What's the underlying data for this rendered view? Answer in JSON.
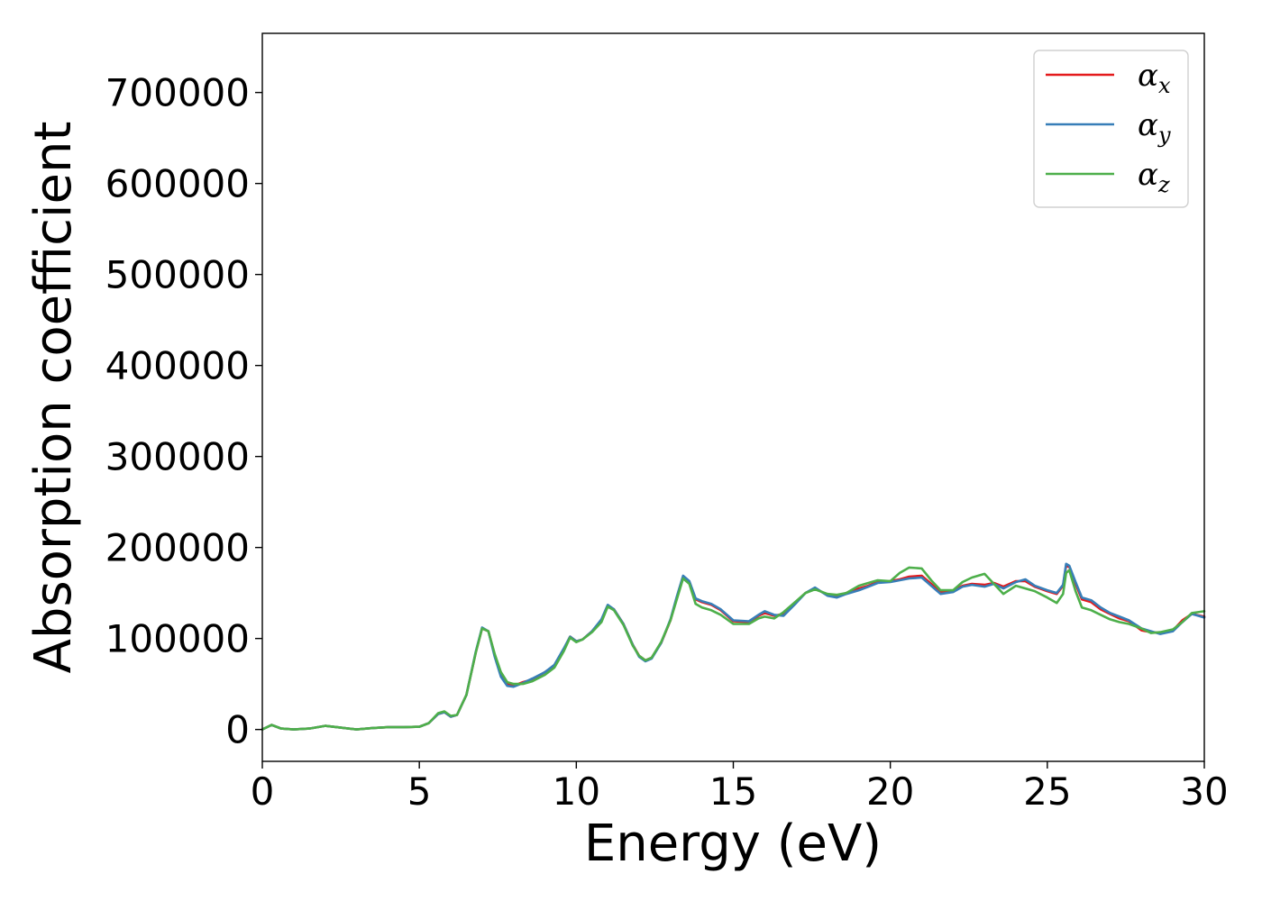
{
  "chart_data": {
    "type": "line",
    "title": "",
    "xlabel": "Energy (eV)",
    "ylabel": "Absorption coefficient",
    "xlim": [
      0,
      30
    ],
    "ylim": [
      -35000,
      765000
    ],
    "xticks": [
      0,
      5,
      10,
      15,
      20,
      25,
      30
    ],
    "xtick_labels": [
      "0",
      "5",
      "10",
      "15",
      "20",
      "25",
      "30"
    ],
    "yticks": [
      0,
      100000,
      200000,
      300000,
      400000,
      500000,
      600000,
      700000
    ],
    "ytick_labels": [
      "0",
      "100000",
      "200000",
      "300000",
      "400000",
      "500000",
      "600000",
      "700000"
    ],
    "grid": false,
    "legend_position": "top-right",
    "colors": {
      "alpha_x": "#e41a1c",
      "alpha_y": "#377eb8",
      "alpha_z": "#4daf4a"
    },
    "series": [
      {
        "name": "αx",
        "sym": "α",
        "sub": "x",
        "color": "#e41a1c",
        "x": [
          0,
          0.3,
          0.6,
          1,
          1.5,
          2,
          2.5,
          3,
          3.5,
          4,
          4.5,
          5,
          5.3,
          5.6,
          5.8,
          6,
          6.2,
          6.5,
          6.8,
          7,
          7.2,
          7.4,
          7.6,
          7.8,
          8,
          8.3,
          8.6,
          9,
          9.3,
          9.6,
          9.8,
          10,
          10.2,
          10.5,
          10.8,
          11,
          11.2,
          11.5,
          11.8,
          12,
          12.2,
          12.4,
          12.7,
          13,
          13.2,
          13.4,
          13.6,
          13.8,
          14,
          14.3,
          14.6,
          15,
          15.5,
          15.8,
          16,
          16.3,
          16.6,
          17,
          17.3,
          17.6,
          18,
          18.3,
          18.6,
          19,
          19.3,
          19.6,
          20,
          20.3,
          20.6,
          21,
          21.3,
          21.6,
          22,
          22.3,
          22.6,
          23,
          23.3,
          23.6,
          24,
          24.3,
          24.6,
          25,
          25.3,
          25.5,
          25.6,
          25.7,
          25.9,
          26.1,
          26.4,
          26.7,
          27,
          27.3,
          27.6,
          28,
          28.3,
          28.6,
          29,
          29.3,
          29.6,
          30
        ],
        "y": [
          0,
          5000,
          1000,
          0,
          1000,
          4000,
          2000,
          0,
          1500,
          2500,
          2500,
          3000,
          7000,
          17000,
          19000,
          14000,
          16000,
          38000,
          85000,
          111000,
          108000,
          82000,
          60000,
          50000,
          48000,
          52000,
          55000,
          63000,
          70000,
          88000,
          102000,
          97000,
          99000,
          108000,
          120000,
          136000,
          132000,
          116000,
          93000,
          81000,
          76000,
          79000,
          95000,
          120000,
          145000,
          168000,
          162000,
          143000,
          140000,
          137000,
          131000,
          119000,
          118000,
          125000,
          128000,
          125000,
          127000,
          140000,
          150000,
          155000,
          148000,
          146000,
          150000,
          155000,
          158000,
          162000,
          163000,
          165000,
          168000,
          169000,
          160000,
          151000,
          152000,
          158000,
          160000,
          159000,
          161000,
          157000,
          163000,
          163000,
          157000,
          152000,
          149000,
          158000,
          180000,
          179000,
          160000,
          143000,
          140000,
          132000,
          127000,
          122000,
          119000,
          109000,
          107000,
          106000,
          109000,
          120000,
          127000,
          124000
        ]
      },
      {
        "name": "αy",
        "sym": "α",
        "sub": "y",
        "color": "#377eb8",
        "x": [
          0,
          0.3,
          0.6,
          1,
          1.5,
          2,
          2.5,
          3,
          3.5,
          4,
          4.5,
          5,
          5.3,
          5.6,
          5.8,
          6,
          6.2,
          6.5,
          6.8,
          7,
          7.2,
          7.4,
          7.6,
          7.8,
          8,
          8.3,
          8.6,
          9,
          9.3,
          9.6,
          9.8,
          10,
          10.2,
          10.5,
          10.8,
          11,
          11.2,
          11.5,
          11.8,
          12,
          12.2,
          12.4,
          12.7,
          13,
          13.2,
          13.4,
          13.6,
          13.8,
          14,
          14.3,
          14.6,
          15,
          15.5,
          15.8,
          16,
          16.3,
          16.6,
          17,
          17.3,
          17.6,
          18,
          18.3,
          18.6,
          19,
          19.3,
          19.6,
          20,
          20.3,
          20.6,
          21,
          21.3,
          21.6,
          22,
          22.3,
          22.6,
          23,
          23.3,
          23.6,
          24,
          24.3,
          24.6,
          25,
          25.3,
          25.5,
          25.6,
          25.7,
          25.9,
          26.1,
          26.4,
          26.7,
          27,
          27.3,
          27.6,
          28,
          28.3,
          28.6,
          29,
          29.3,
          29.6,
          30
        ],
        "y": [
          0,
          5000,
          1000,
          0,
          1000,
          4000,
          2000,
          0,
          1500,
          2500,
          2500,
          3000,
          7000,
          17000,
          19000,
          14000,
          16000,
          38000,
          86000,
          112000,
          108000,
          80000,
          58000,
          48000,
          47000,
          51000,
          56000,
          63000,
          71000,
          89000,
          102000,
          97000,
          99000,
          108000,
          121000,
          137000,
          132000,
          116000,
          93000,
          80000,
          75000,
          78000,
          95000,
          121000,
          146000,
          169000,
          163000,
          144000,
          141000,
          138000,
          132000,
          120000,
          119000,
          126000,
          130000,
          126000,
          125000,
          139000,
          150000,
          156000,
          147000,
          145000,
          149000,
          153000,
          157000,
          161000,
          162000,
          164000,
          166000,
          167000,
          158000,
          149000,
          151000,
          157000,
          159000,
          157000,
          160000,
          155000,
          162000,
          165000,
          158000,
          153000,
          150000,
          159000,
          182000,
          180000,
          162000,
          145000,
          142000,
          134000,
          128000,
          124000,
          120000,
          111000,
          108000,
          105000,
          108000,
          118000,
          127000,
          123000
        ]
      },
      {
        "name": "αz",
        "sym": "α",
        "sub": "z",
        "color": "#4daf4a",
        "x": [
          0,
          0.3,
          0.6,
          1,
          1.5,
          2,
          2.5,
          3,
          3.5,
          4,
          4.5,
          5,
          5.3,
          5.6,
          5.8,
          6,
          6.2,
          6.5,
          6.8,
          7,
          7.2,
          7.4,
          7.6,
          7.8,
          8,
          8.3,
          8.6,
          9,
          9.3,
          9.6,
          9.8,
          10,
          10.2,
          10.5,
          10.8,
          11,
          11.2,
          11.5,
          11.8,
          12,
          12.2,
          12.4,
          12.7,
          13,
          13.2,
          13.4,
          13.6,
          13.8,
          14,
          14.3,
          14.6,
          15,
          15.5,
          15.8,
          16,
          16.3,
          16.6,
          17,
          17.3,
          17.6,
          18,
          18.3,
          18.6,
          19,
          19.3,
          19.6,
          20,
          20.3,
          20.6,
          21,
          21.3,
          21.6,
          22,
          22.3,
          22.6,
          23,
          23.3,
          23.6,
          24,
          24.3,
          24.6,
          25,
          25.3,
          25.5,
          25.6,
          25.7,
          25.9,
          26.1,
          26.4,
          26.7,
          27,
          27.3,
          27.6,
          28,
          28.3,
          28.6,
          29,
          29.3,
          29.6,
          30
        ],
        "y": [
          0,
          5000,
          1000,
          0,
          1000,
          4000,
          2000,
          0,
          1500,
          2500,
          2500,
          3000,
          7000,
          18000,
          20000,
          15000,
          16000,
          38000,
          85000,
          111000,
          108000,
          83000,
          63000,
          52000,
          50000,
          50000,
          53000,
          60000,
          68000,
          86000,
          101000,
          96000,
          99000,
          107000,
          118000,
          135000,
          131000,
          115000,
          92000,
          81000,
          76000,
          79000,
          96000,
          120000,
          143000,
          166000,
          160000,
          138000,
          134000,
          131000,
          126000,
          116000,
          116000,
          122000,
          124000,
          122000,
          129000,
          141000,
          150000,
          154000,
          149000,
          148000,
          150000,
          158000,
          161000,
          164000,
          163000,
          172000,
          178000,
          177000,
          164000,
          153000,
          153000,
          162000,
          167000,
          171000,
          160000,
          149000,
          158000,
          155000,
          152000,
          145000,
          139000,
          149000,
          172000,
          175000,
          152000,
          134000,
          131000,
          126000,
          121000,
          118000,
          116000,
          111000,
          106000,
          107000,
          110000,
          118000,
          128000,
          130000
        ]
      }
    ]
  }
}
